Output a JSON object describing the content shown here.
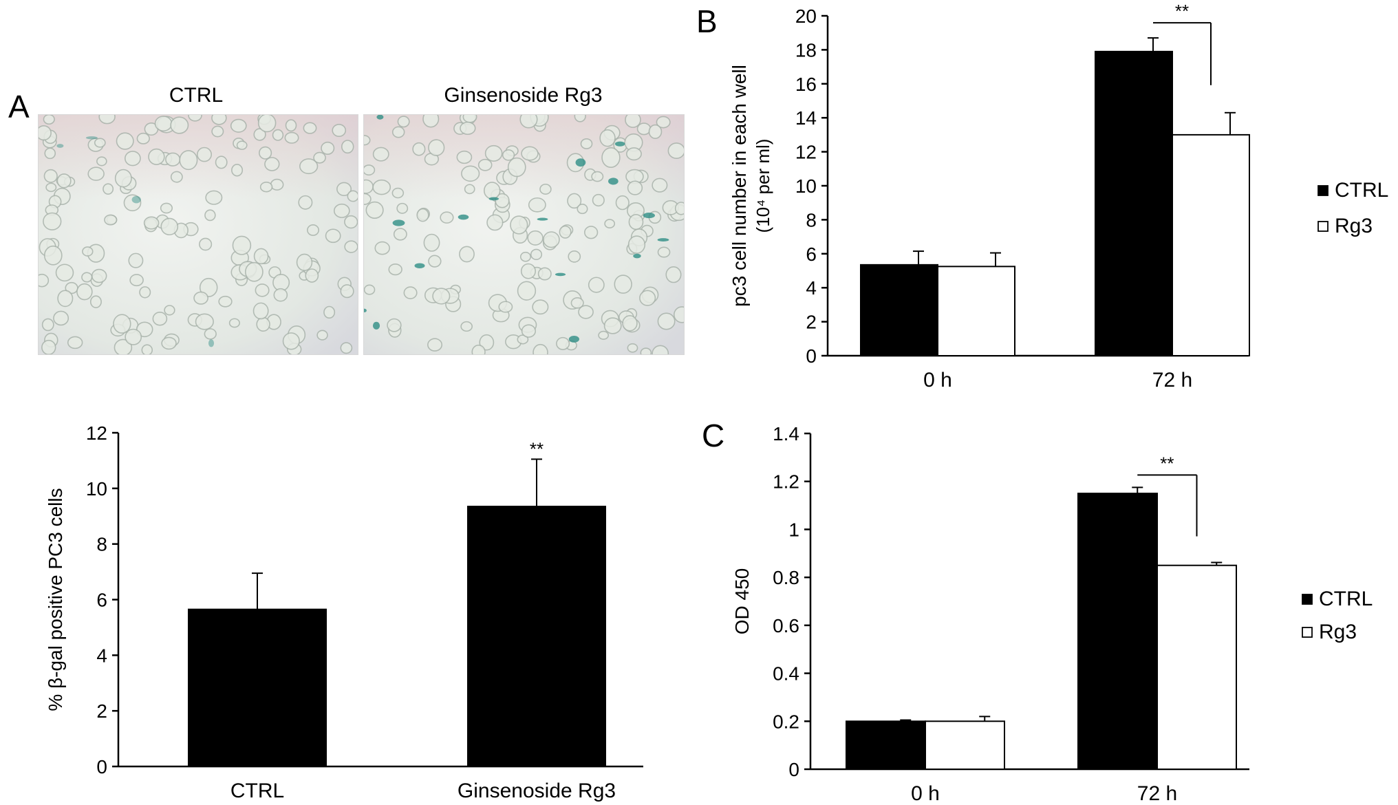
{
  "panels": {
    "a": "A",
    "b": "B",
    "c": "C"
  },
  "photos": {
    "left_title": "CTRL",
    "right_title": "Ginsenoside Rg3",
    "stain_color": "#2f8f86"
  },
  "chart_data": [
    {
      "id": "beta-gal",
      "type": "bar",
      "categories": [
        "CTRL",
        "Ginsenoside Rg3"
      ],
      "series": [
        {
          "values": [
            5.65,
            9.35
          ],
          "errors": [
            1.3,
            1.7
          ],
          "color": "#000000"
        }
      ],
      "ylabel": "% β-gal positive PC3 cells",
      "ylim": [
        0,
        12
      ],
      "yticks": [
        0,
        2,
        4,
        6,
        8,
        10,
        12
      ],
      "significance": [
        {
          "category": 1,
          "label": "**"
        }
      ],
      "grid": false
    },
    {
      "id": "cell-number",
      "type": "bar",
      "categories": [
        "0 h",
        "72 h"
      ],
      "series": [
        {
          "name": "CTRL",
          "values": [
            5.35,
            17.9
          ],
          "errors": [
            0.8,
            0.8
          ],
          "color": "#000000"
        },
        {
          "name": "Rg3",
          "values": [
            5.25,
            13.0
          ],
          "errors": [
            0.8,
            1.3
          ],
          "color": "#ffffff"
        }
      ],
      "ylabel": "pc3 cell number in each well",
      "ylabel2": "(10⁴ per ml)",
      "ylim": [
        0,
        20
      ],
      "yticks": [
        0,
        2,
        4,
        6,
        8,
        10,
        12,
        14,
        16,
        18,
        20
      ],
      "significance_label": "**",
      "legend": "right",
      "grid": false
    },
    {
      "id": "od450",
      "type": "bar",
      "categories": [
        "0 h",
        "72 h"
      ],
      "series": [
        {
          "name": "CTRL",
          "values": [
            0.2,
            1.15
          ],
          "errors": [
            0.005,
            0.025
          ],
          "color": "#000000"
        },
        {
          "name": "Rg3",
          "values": [
            0.2,
            0.85
          ],
          "errors": [
            0.02,
            0.012
          ],
          "color": "#ffffff"
        }
      ],
      "ylabel": "OD 450",
      "ylim": [
        0,
        1.4
      ],
      "ytick_labels": [
        "0",
        "0.2",
        "0.4",
        "0.6",
        "0.8",
        "1",
        "1.2",
        "1.4"
      ],
      "yticks": [
        0,
        0.2,
        0.4,
        0.6,
        0.8,
        1.0,
        1.2,
        1.4
      ],
      "significance_label": "**",
      "legend": "right",
      "grid": false
    }
  ]
}
